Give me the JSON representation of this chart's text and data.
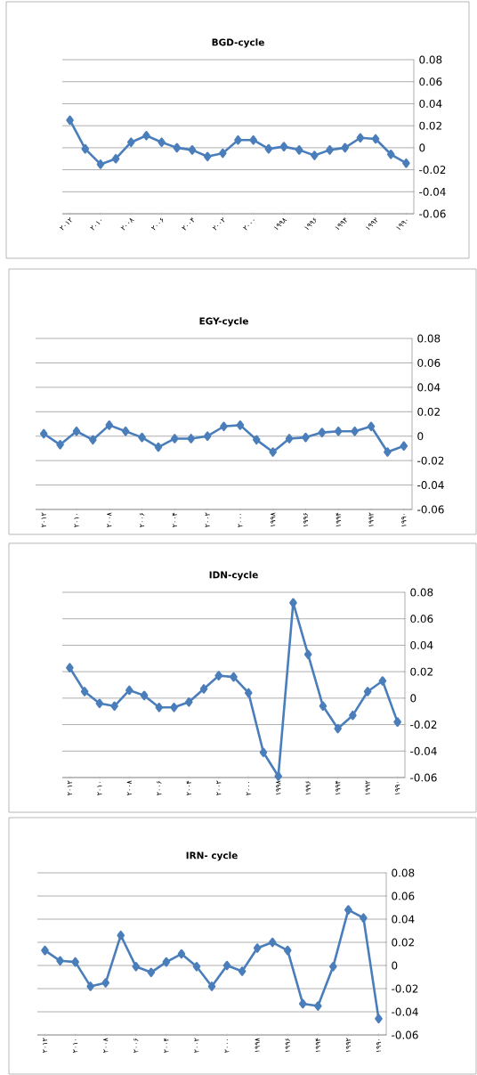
{
  "chart_data": [
    {
      "type": "line",
      "title": "BGD-cycle",
      "categories": [
        "۲۰۱۲",
        null,
        "۲۰۱۰",
        null,
        "۲۰۰۸",
        null,
        "۲۰۰۶",
        null,
        "۲۰۰۴",
        null,
        "۲۰۰۲",
        null,
        "۲۰۰۰",
        null,
        "۱۹۹۸",
        null,
        "۱۹۹۶",
        null,
        "۱۹۹۴",
        null,
        "۱۹۹۲",
        null,
        "۱۹۹۰"
      ],
      "values": [
        0.025,
        -0.001,
        -0.015,
        -0.01,
        0.005,
        0.011,
        0.005,
        0.0,
        -0.002,
        -0.008,
        -0.005,
        0.007,
        0.007,
        -0.001,
        0.001,
        -0.002,
        -0.007,
        -0.002,
        0.0,
        0.009,
        0.008,
        -0.006,
        -0.014
      ],
      "color": "#4a7ebb",
      "marker": "diamond",
      "grid": "y",
      "ylim": [
        -0.06,
        0.08
      ],
      "yticks": [
        -0.06,
        -0.04,
        -0.02,
        0,
        0.02,
        0.04,
        0.06,
        0.08
      ]
    },
    {
      "type": "line",
      "title": "EGY-cycle",
      "categories": [
        "۲۰۱۲",
        null,
        "۲۰۱۰",
        null,
        "۲۰۰۸",
        null,
        "۲۰۰۶",
        null,
        "۲۰۰۴",
        null,
        "۲۰۰۲",
        null,
        "۲۰۰۰",
        null,
        "۱۹۹۸",
        null,
        "۱۹۹۶",
        null,
        "۱۹۹۴",
        null,
        "۱۹۹۲",
        null,
        "۱۹۹۰"
      ],
      "values": [
        0.002,
        -0.007,
        0.004,
        -0.003,
        0.009,
        0.004,
        -0.001,
        -0.009,
        -0.002,
        -0.002,
        0.0,
        0.008,
        0.009,
        -0.003,
        -0.013,
        -0.002,
        -0.001,
        0.003,
        0.004,
        0.004,
        0.008,
        -0.013,
        -0.008
      ],
      "color": "#4a7ebb",
      "marker": "diamond",
      "grid": "y",
      "ylim": [
        -0.06,
        0.08
      ],
      "yticks": [
        -0.06,
        -0.04,
        -0.02,
        0,
        0.02,
        0.04,
        0.06,
        0.08
      ]
    },
    {
      "type": "line",
      "title": "IDN-cycle",
      "categories": [
        "۲۰۱۲",
        null,
        "۲۰۱۰",
        null,
        "۲۰۰۸",
        null,
        "۲۰۰۶",
        null,
        "۲۰۰۴",
        null,
        "۲۰۰۲",
        null,
        "۲۰۰۰",
        null,
        "۱۹۹۸",
        null,
        "۱۹۹۶",
        null,
        "۱۹۹۴",
        null,
        "۱۹۹۲",
        null,
        "۱۹۹۰"
      ],
      "values": [
        0.023,
        0.005,
        -0.004,
        -0.006,
        0.006,
        0.002,
        -0.007,
        -0.007,
        -0.003,
        0.007,
        0.017,
        0.016,
        0.004,
        -0.041,
        -0.059,
        0.072,
        0.033,
        -0.006,
        -0.023,
        -0.013,
        0.005,
        0.013,
        -0.018
      ],
      "color": "#4a7ebb",
      "marker": "diamond",
      "grid": "y",
      "ylim": [
        -0.06,
        0.08
      ],
      "yticks": [
        -0.06,
        -0.04,
        -0.02,
        0,
        0.02,
        0.04,
        0.06,
        0.08
      ]
    },
    {
      "type": "line",
      "title": "IRN- cycle",
      "categories": [
        "۲۰۱۲",
        null,
        "۲۰۱۰",
        null,
        "۲۰۰۸",
        null,
        "۲۰۰۶",
        null,
        "۲۰۰۴",
        null,
        "۲۰۰۲",
        null,
        "۲۰۰۰",
        null,
        "۱۹۹۸",
        null,
        "۱۹۹۶",
        null,
        "۱۹۹۴",
        null,
        "۱۹۹۲",
        null,
        "۱۹۹۰"
      ],
      "values": [
        0.013,
        0.004,
        0.003,
        -0.018,
        -0.015,
        0.026,
        -0.001,
        -0.006,
        0.003,
        0.01,
        -0.001,
        -0.018,
        0.0,
        -0.005,
        0.015,
        0.02,
        0.013,
        -0.033,
        -0.035,
        -0.001,
        0.048,
        0.041,
        -0.046
      ],
      "color": "#4a7ebb",
      "marker": "diamond",
      "grid": "y",
      "ylim": [
        -0.06,
        0.08
      ],
      "yticks": [
        -0.06,
        -0.04,
        -0.02,
        0,
        0.02,
        0.04,
        0.06,
        0.08
      ]
    }
  ]
}
